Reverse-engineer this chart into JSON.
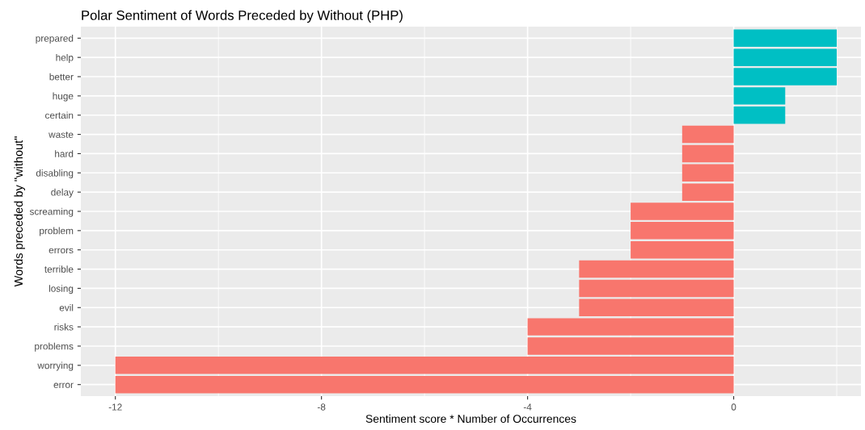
{
  "chart_data": {
    "type": "bar",
    "orientation": "horizontal",
    "title": "Polar Sentiment of Words Preceded by Without (PHP)",
    "xlabel": "Sentiment score * Number of Occurrences",
    "ylabel": "Words preceded by \"without\"",
    "categories": [
      "prepared",
      "help",
      "better",
      "huge",
      "certain",
      "waste",
      "hard",
      "disabling",
      "delay",
      "screaming",
      "problem",
      "errors",
      "terrible",
      "losing",
      "evil",
      "risks",
      "problems",
      "worrying",
      "error"
    ],
    "values": [
      2,
      2,
      2,
      1,
      1,
      -1,
      -1,
      -1,
      -1,
      -2,
      -2,
      -2,
      -3,
      -3,
      -3,
      -4,
      -4,
      -12,
      -12
    ],
    "colors": [
      "#00bfc4",
      "#00bfc4",
      "#00bfc4",
      "#00bfc4",
      "#00bfc4",
      "#f8766d",
      "#f8766d",
      "#f8766d",
      "#f8766d",
      "#f8766d",
      "#f8766d",
      "#f8766d",
      "#f8766d",
      "#f8766d",
      "#f8766d",
      "#f8766d",
      "#f8766d",
      "#f8766d",
      "#f8766d"
    ],
    "xlim": [
      -12.67,
      2.47
    ],
    "xticks": [
      -12,
      -8,
      -4,
      0
    ],
    "grid": true,
    "legend": false
  }
}
